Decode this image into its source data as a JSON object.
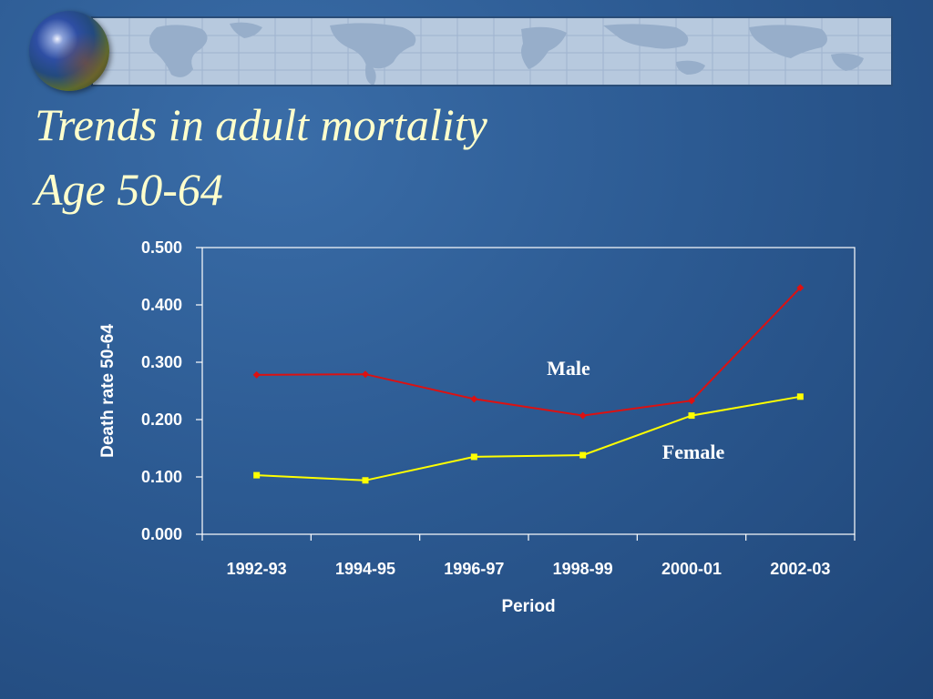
{
  "slide": {
    "title_line1": "Trends in adult mortality",
    "title_line2": "Age 50-64"
  },
  "colors": {
    "title": "#ffffcc",
    "male": "#dd1111",
    "female": "#ffff00",
    "axes": "#ffffff"
  },
  "chart_data": {
    "type": "line",
    "title": "",
    "xlabel": "Period",
    "ylabel": "Death rate 50-64",
    "categories": [
      "1992-93",
      "1994-95",
      "1996-97",
      "1998-99",
      "2000-01",
      "2002-03"
    ],
    "ylim": [
      0,
      0.5
    ],
    "yticks": [
      "0.000",
      "0.100",
      "0.200",
      "0.300",
      "0.400",
      "0.500"
    ],
    "grid": false,
    "series": [
      {
        "name": "Male",
        "color": "#dd1111",
        "marker": "diamond",
        "values": [
          0.278,
          0.279,
          0.236,
          0.207,
          0.233,
          0.43
        ]
      },
      {
        "name": "Female",
        "color": "#ffff00",
        "marker": "square",
        "values": [
          0.103,
          0.094,
          0.135,
          0.138,
          0.207,
          0.24
        ]
      }
    ]
  }
}
